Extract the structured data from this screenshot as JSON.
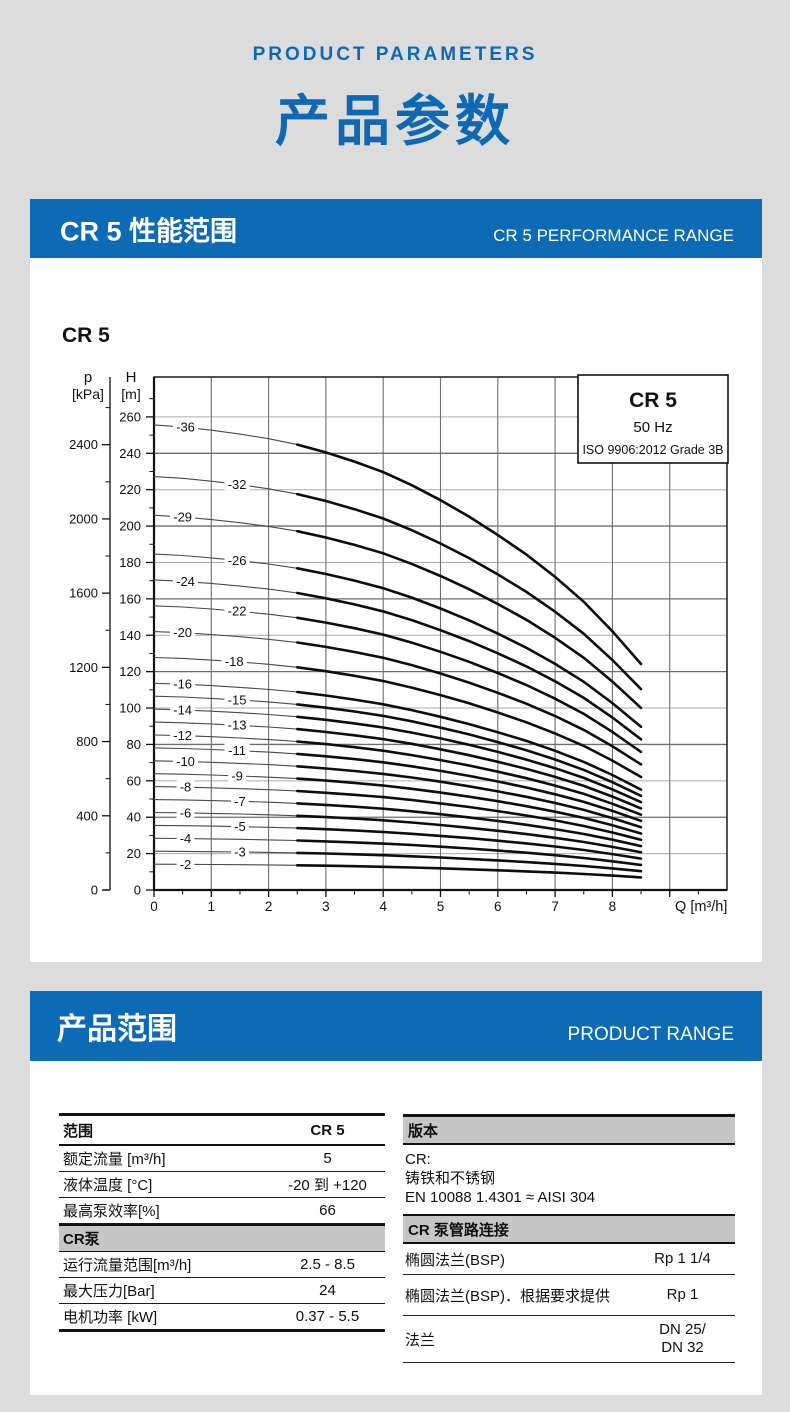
{
  "colors": {
    "accent_blue": "#0d6ab4",
    "text_blue": "#0f69b2",
    "page_bg": "#dcdcdc",
    "table_bar_gray": "#c6c6c6"
  },
  "header": {
    "eyebrow": "PRODUCT PARAMETERS",
    "title": "产品参数"
  },
  "sections": [
    {
      "title_zh": "CR 5 性能范围",
      "title_en": "CR 5 PERFORMANCE RANGE"
    },
    {
      "title_zh": "产品范围",
      "title_en": "PRODUCT RANGE"
    }
  ],
  "chart_data": {
    "type": "line",
    "title": "CR 5",
    "note_box": {
      "model": "CR 5",
      "frequency": "50 Hz",
      "standard": "ISO 9906:2012 Grade 3B"
    },
    "xlabel": "Q [m³/h]",
    "x_ticks": [
      0,
      1,
      2,
      3,
      4,
      5,
      6,
      7,
      8
    ],
    "x_range": [
      0,
      10
    ],
    "x_minor_step": 0.5,
    "h_axis": {
      "title_top": "H",
      "title_unit": "[m]",
      "ticks": [
        0,
        20,
        40,
        60,
        80,
        100,
        120,
        140,
        160,
        180,
        200,
        220,
        240,
        260
      ],
      "range": [
        0,
        282
      ]
    },
    "p_axis": {
      "title_top": "p",
      "title_unit": "[kPa]",
      "ticks": [
        0,
        400,
        800,
        1200,
        1600,
        2000,
        2400
      ],
      "kpa_to_m": 0.10197
    },
    "duty_flow_range_m3h": [
      2.5,
      8.5
    ],
    "per_stage_head_curve": {
      "q": [
        0,
        0.5,
        1,
        1.5,
        2,
        2.5,
        3,
        3.5,
        4,
        4.5,
        5,
        5.5,
        6,
        6.5,
        7,
        7.5,
        8,
        8.5
      ],
      "h_per_stage": [
        7.1,
        7.07,
        7.02,
        6.96,
        6.89,
        6.8,
        6.68,
        6.54,
        6.38,
        6.18,
        5.95,
        5.7,
        5.42,
        5.12,
        4.78,
        4.4,
        3.95,
        3.45
      ]
    },
    "series": [
      {
        "stages": 36,
        "label": "-36",
        "label_q": 0.55
      },
      {
        "stages": 32,
        "label": "-32",
        "label_q": 1.45
      },
      {
        "stages": 29,
        "label": "-29",
        "label_q": 0.5
      },
      {
        "stages": 26,
        "label": "-26",
        "label_q": 1.45
      },
      {
        "stages": 24,
        "label": "-24",
        "label_q": 0.55
      },
      {
        "stages": 22,
        "label": "-22",
        "label_q": 1.45
      },
      {
        "stages": 20,
        "label": "-20",
        "label_q": 0.5
      },
      {
        "stages": 18,
        "label": "-18",
        "label_q": 1.4
      },
      {
        "stages": 16,
        "label": "-16",
        "label_q": 0.5
      },
      {
        "stages": 15,
        "label": "-15",
        "label_q": 1.45
      },
      {
        "stages": 14,
        "label": "-14",
        "label_q": 0.5
      },
      {
        "stages": 13,
        "label": "-13",
        "label_q": 1.45
      },
      {
        "stages": 12,
        "label": "-12",
        "label_q": 0.5
      },
      {
        "stages": 11,
        "label": "-11",
        "label_q": 1.45
      },
      {
        "stages": 10,
        "label": "-10",
        "label_q": 0.55
      },
      {
        "stages": 9,
        "label": "-9",
        "label_q": 1.45
      },
      {
        "stages": 8,
        "label": "-8",
        "label_q": 0.55
      },
      {
        "stages": 7,
        "label": "-7",
        "label_q": 1.5
      },
      {
        "stages": 6,
        "label": "-6",
        "label_q": 0.55
      },
      {
        "stages": 5,
        "label": "-5",
        "label_q": 1.5
      },
      {
        "stages": 4,
        "label": "-4",
        "label_q": 0.55
      },
      {
        "stages": 3,
        "label": "-3",
        "label_q": 1.5
      },
      {
        "stages": 2,
        "label": "-2",
        "label_q": 0.55
      }
    ]
  },
  "range_table": {
    "header": {
      "label": "范围",
      "value": "CR 5"
    },
    "rows": [
      {
        "label": "额定流量 [m³/h]",
        "value": "5"
      },
      {
        "label": "液体温度 [°C]",
        "value": "-20 到 +120"
      },
      {
        "label": "最高泵效率[%]",
        "value": "66"
      }
    ],
    "section_label": "CR泵",
    "rows2": [
      {
        "label": "运行流量范围[m³/h]",
        "value": "2.5 - 8.5"
      },
      {
        "label": "最大压力[Bar]",
        "value": "24"
      },
      {
        "label": "电机功率 [kW]",
        "value": "0.37 - 5.5"
      }
    ]
  },
  "version_table": {
    "header1": "版本",
    "version_lines": [
      "CR:",
      "铸铁和不锈钢",
      "EN 10088 1.4301 ≈ AISI 304"
    ],
    "header2": "CR 泵管路连接",
    "rows": [
      {
        "label": "椭圆法兰(BSP)",
        "value": "Rp 1 1/4"
      },
      {
        "label": "椭圆法兰(BSP)．根据要求提供",
        "value": "Rp 1"
      },
      {
        "label": "法兰",
        "value": "DN 25/\nDN 32"
      }
    ]
  }
}
